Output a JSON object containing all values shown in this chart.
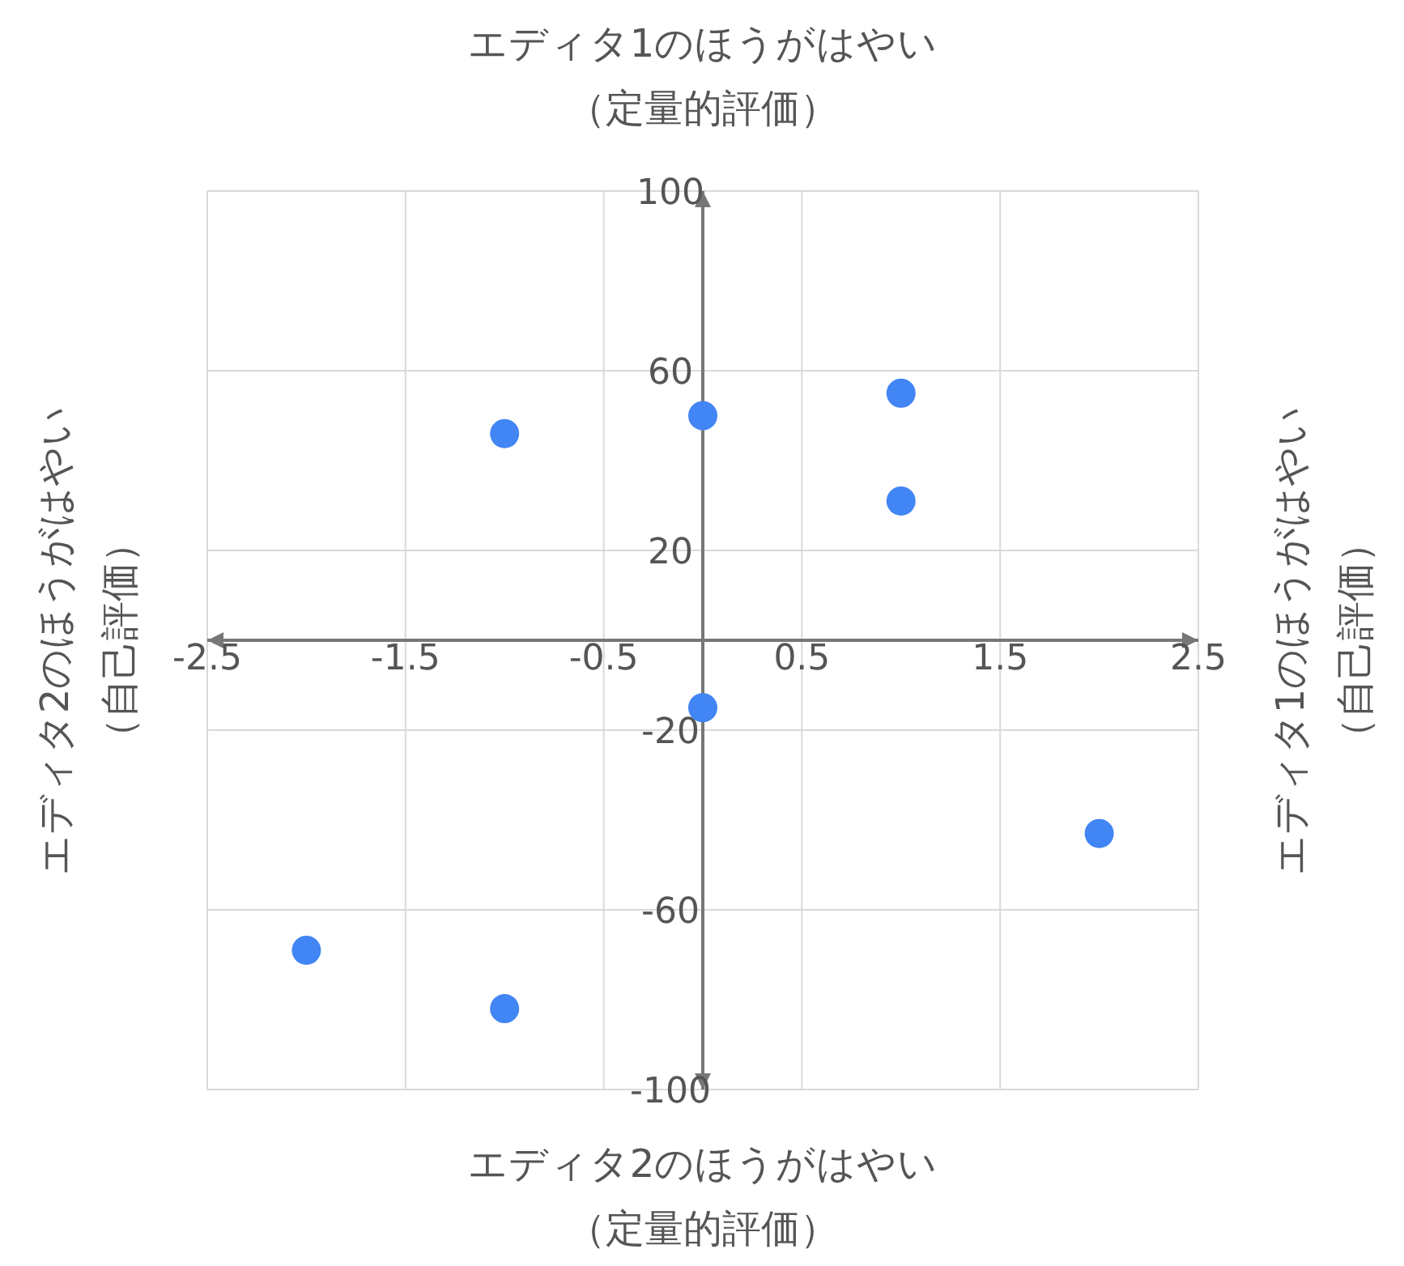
{
  "chart_data": {
    "type": "scatter",
    "x2label": "エディタ1のほうがはやい（定量的評価）",
    "xlabel": "エディタ2のほうがはやい（定量的評価）",
    "ylabel": "エディタ2のほうがはやい（自己評価）",
    "y2label": "エディタ1のほうがはやい（自己評価）",
    "series": [
      {
        "color": "#4285f4",
        "x": [
          -1,
          0,
          1,
          1,
          0,
          2,
          -2,
          -1
        ],
        "values": [
          46,
          50,
          55,
          31,
          -15,
          -43,
          -69,
          -82
        ]
      }
    ],
    "xlim": [
      -2.5,
      2.5
    ],
    "xticks": [
      -2.5,
      -1.5,
      -0.5,
      0.5,
      1.5,
      2.5
    ],
    "ylim": [
      -100,
      100
    ],
    "yticks": [
      -100,
      -60,
      -20,
      20,
      60,
      100
    ],
    "grid": true,
    "marker": "circle"
  }
}
